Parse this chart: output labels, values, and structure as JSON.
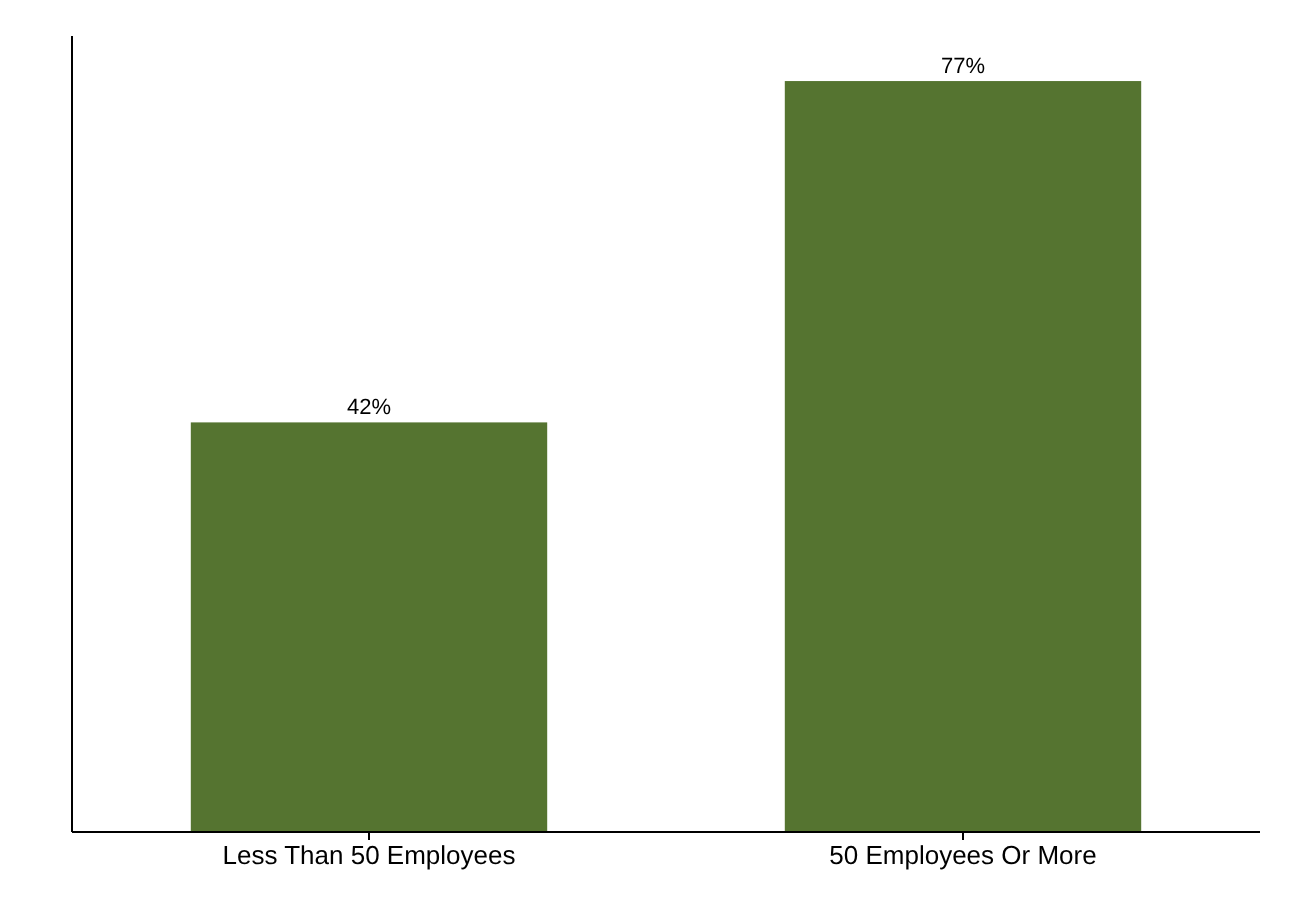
{
  "chart_data": {
    "type": "bar",
    "categories": [
      "Less Than 50 Employees",
      "50 Employees Or More"
    ],
    "values": [
      42,
      77
    ],
    "value_labels": [
      "42%",
      "77%"
    ],
    "color": "#557430"
  }
}
